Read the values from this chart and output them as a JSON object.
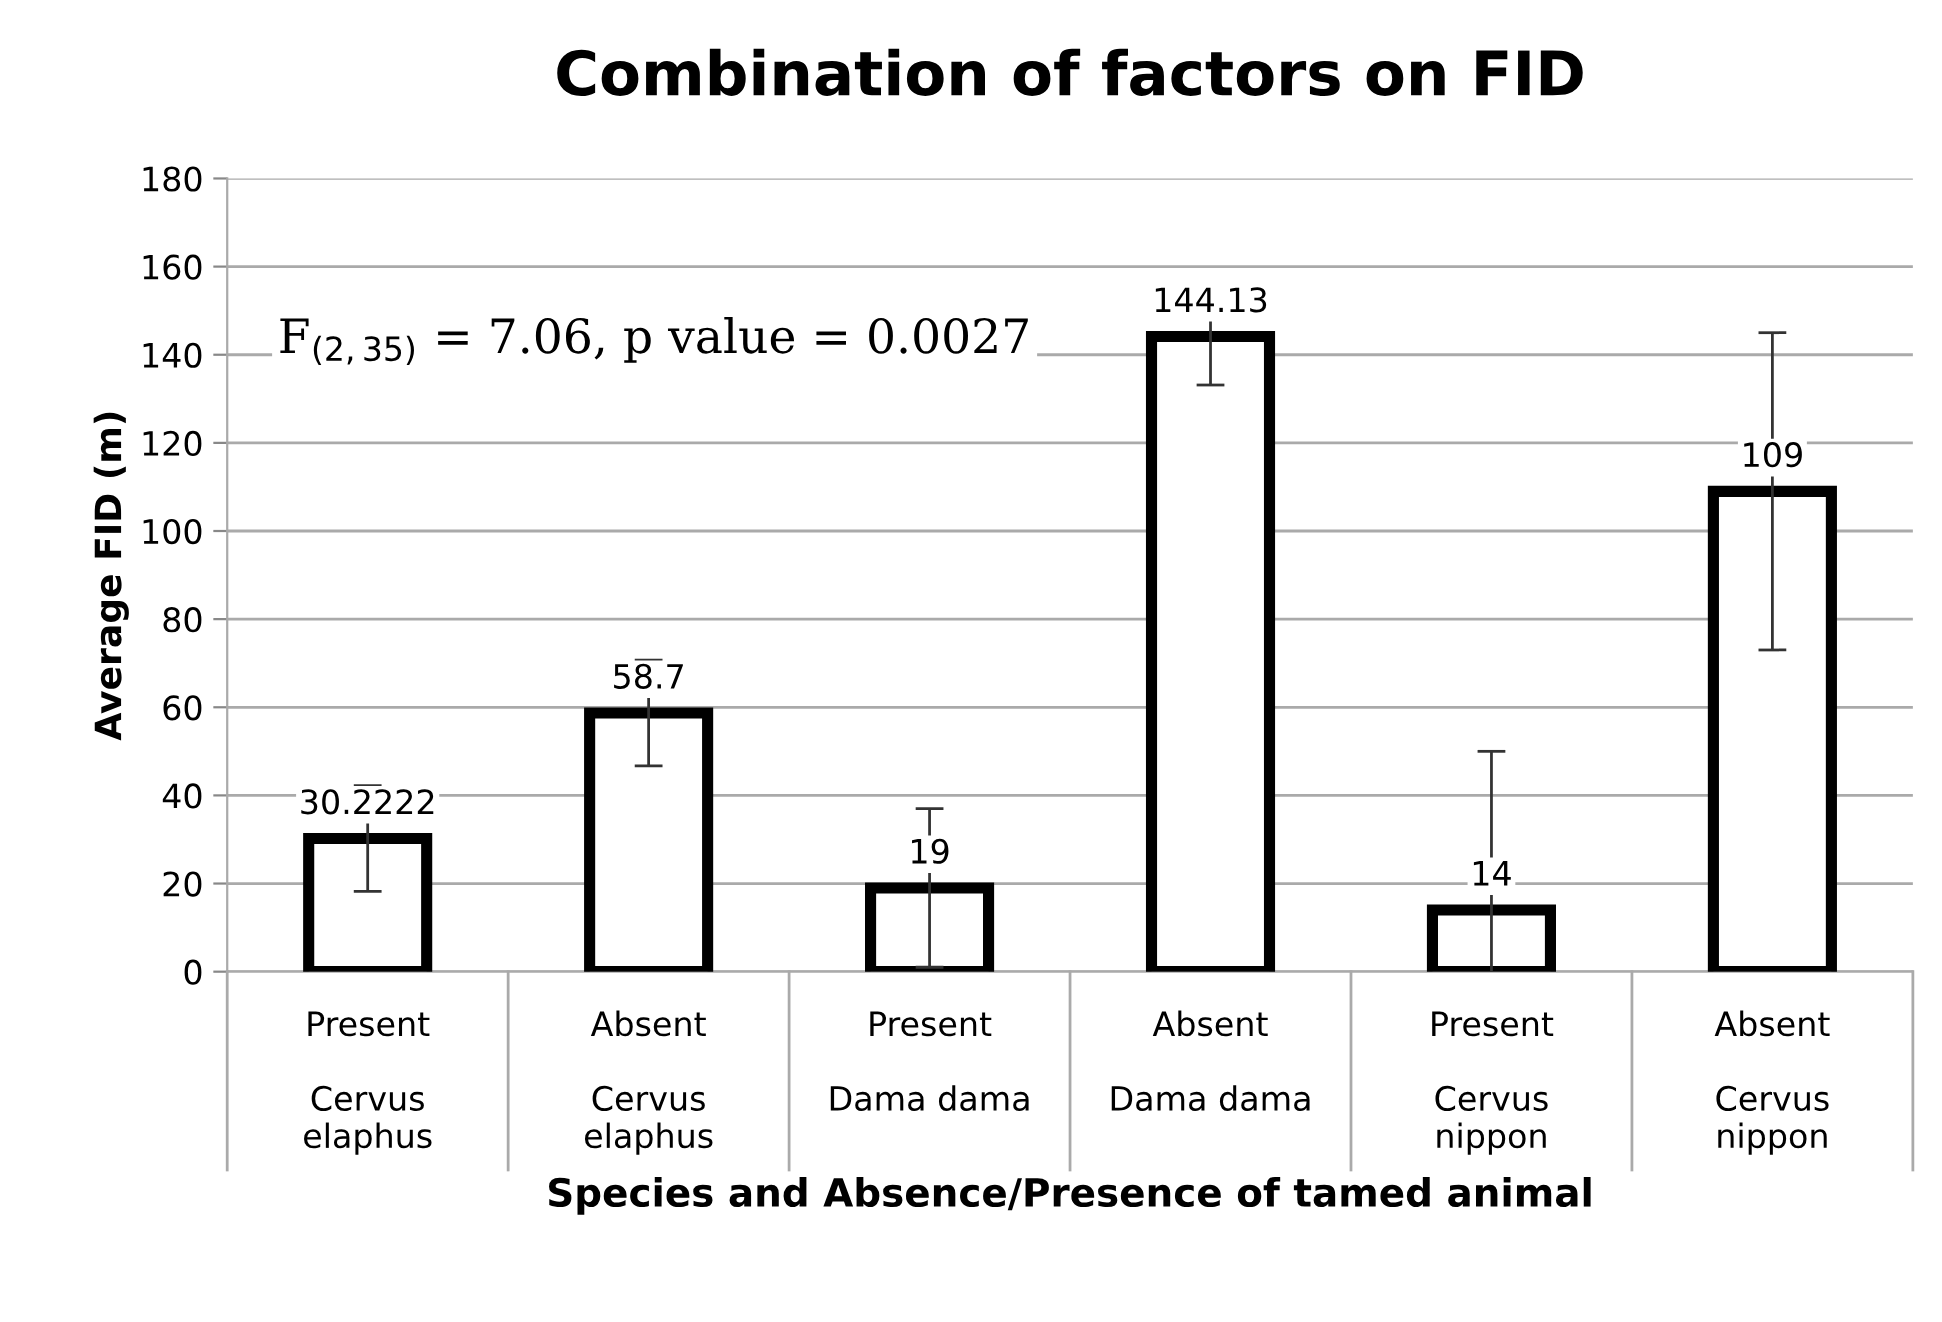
{
  "chart_data": {
    "type": "bar",
    "title": "Combination of factors on FID",
    "xlabel": "Species and Absence/Presence of tamed animal",
    "ylabel": "Average FID (m)",
    "categories": [
      "Present\n\nCervus\nelaphus",
      "Absent\n\nCervus\nelaphus",
      "Present\n\nDama dama",
      "Absent\n\nDama dama",
      "Present\n\nCervus\nnippon",
      "Absent\n\nCervus\nnippon"
    ],
    "values": [
      30.2222,
      58.7,
      19,
      144.13,
      14,
      109
    ],
    "errors": [
      12,
      12,
      18,
      11,
      36,
      36
    ],
    "color": "#ffffff",
    "data_labels": true,
    "ylim": [
      0,
      180
    ],
    "yticks": [
      0,
      20,
      40,
      60,
      80,
      100,
      120,
      140,
      160,
      180
    ],
    "grid": "y",
    "annotations": [
      "F$_{(2,35)}$ = 7.06, p value = 0.0027"
    ]
  }
}
